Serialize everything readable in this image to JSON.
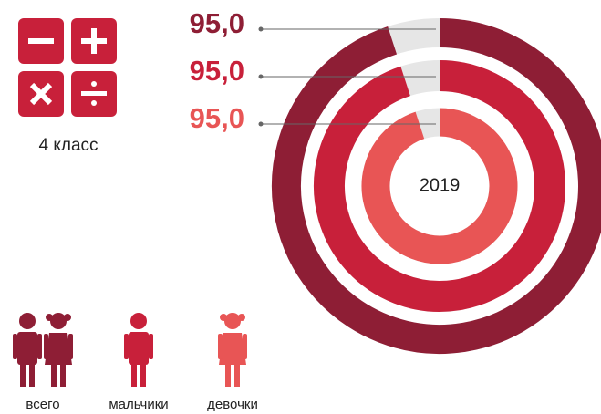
{
  "chart_data": {
    "type": "donut",
    "subtitle": "4 класс",
    "center_label": "2019",
    "series": [
      {
        "name": "всего",
        "color": "#8e1e35",
        "values": [
          95
        ],
        "value_labels": [
          "95,0"
        ]
      },
      {
        "name": "мальчики",
        "color": "#c8203a",
        "values": [
          95
        ],
        "value_labels": [
          "95,0"
        ]
      },
      {
        "name": "девочки",
        "color": "#e85555",
        "values": [
          95
        ],
        "value_labels": [
          "95,0"
        ]
      }
    ]
  }
}
